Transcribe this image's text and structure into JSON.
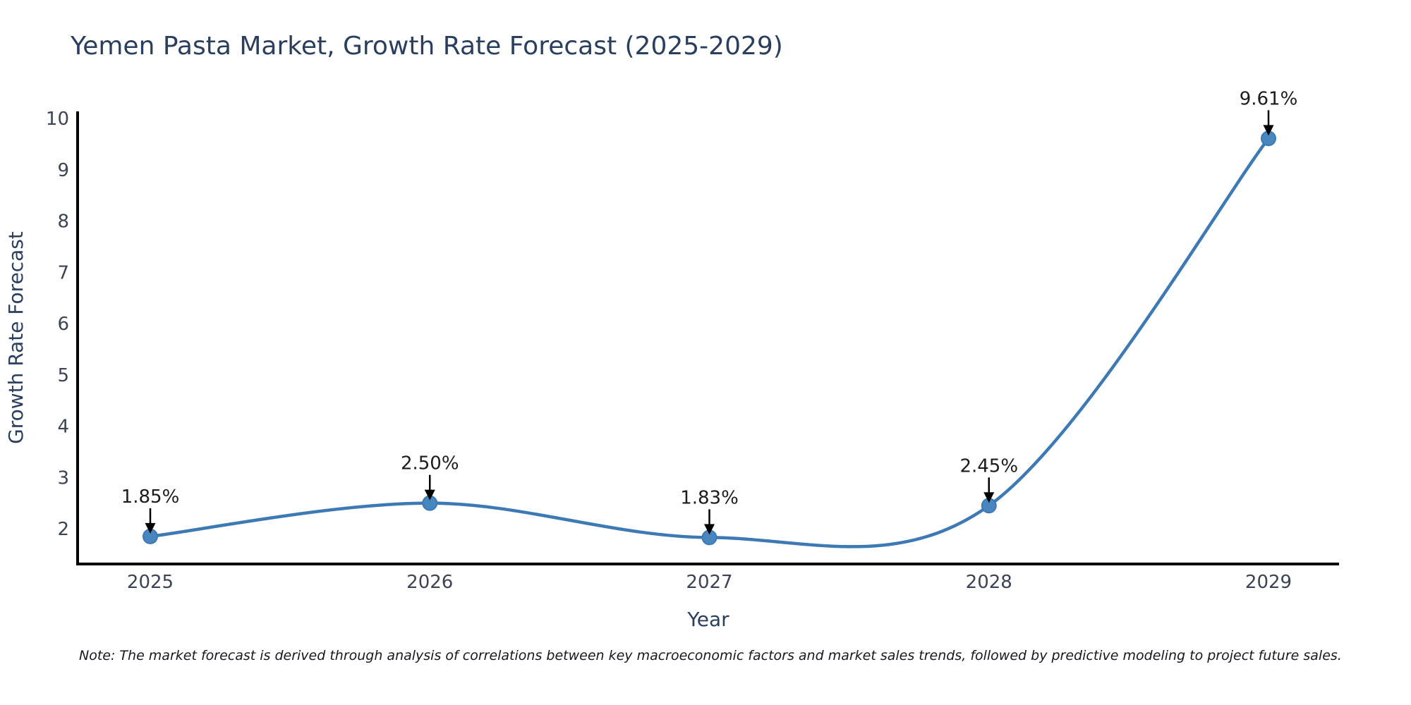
{
  "chart_data": {
    "type": "line",
    "title": "Yemen Pasta Market, Growth Rate Forecast (2025-2029)",
    "xlabel": "Year",
    "ylabel": "Growth Rate Forecast",
    "categories": [
      "2025",
      "2026",
      "2027",
      "2028",
      "2029"
    ],
    "series": [
      {
        "name": "Growth Rate Forecast",
        "values": [
          1.85,
          2.5,
          1.83,
          2.45,
          9.61
        ]
      }
    ],
    "point_labels": [
      "1.85%",
      "2.50%",
      "1.83%",
      "2.45%",
      "9.61%"
    ],
    "y_ticks": [
      2,
      3,
      4,
      5,
      6,
      7,
      8,
      9,
      10
    ],
    "ylim": [
      1.3,
      10.15
    ],
    "grid": false,
    "legend": false,
    "curve": "spline",
    "colors": {
      "line": "#3d7ab5",
      "marker": "#4886bf",
      "axis": "#000000",
      "title": "#2a3f5f",
      "axis_label": "#2a3f5f",
      "tick_label": "#3b4455",
      "annotation": "#1c1c1c",
      "arrow": "#000000",
      "background": "#ffffff"
    }
  },
  "note": "Note: The market forecast is derived through analysis of correlations between key macroeconomic factors and market sales trends, followed by predictive modeling to project future sales."
}
